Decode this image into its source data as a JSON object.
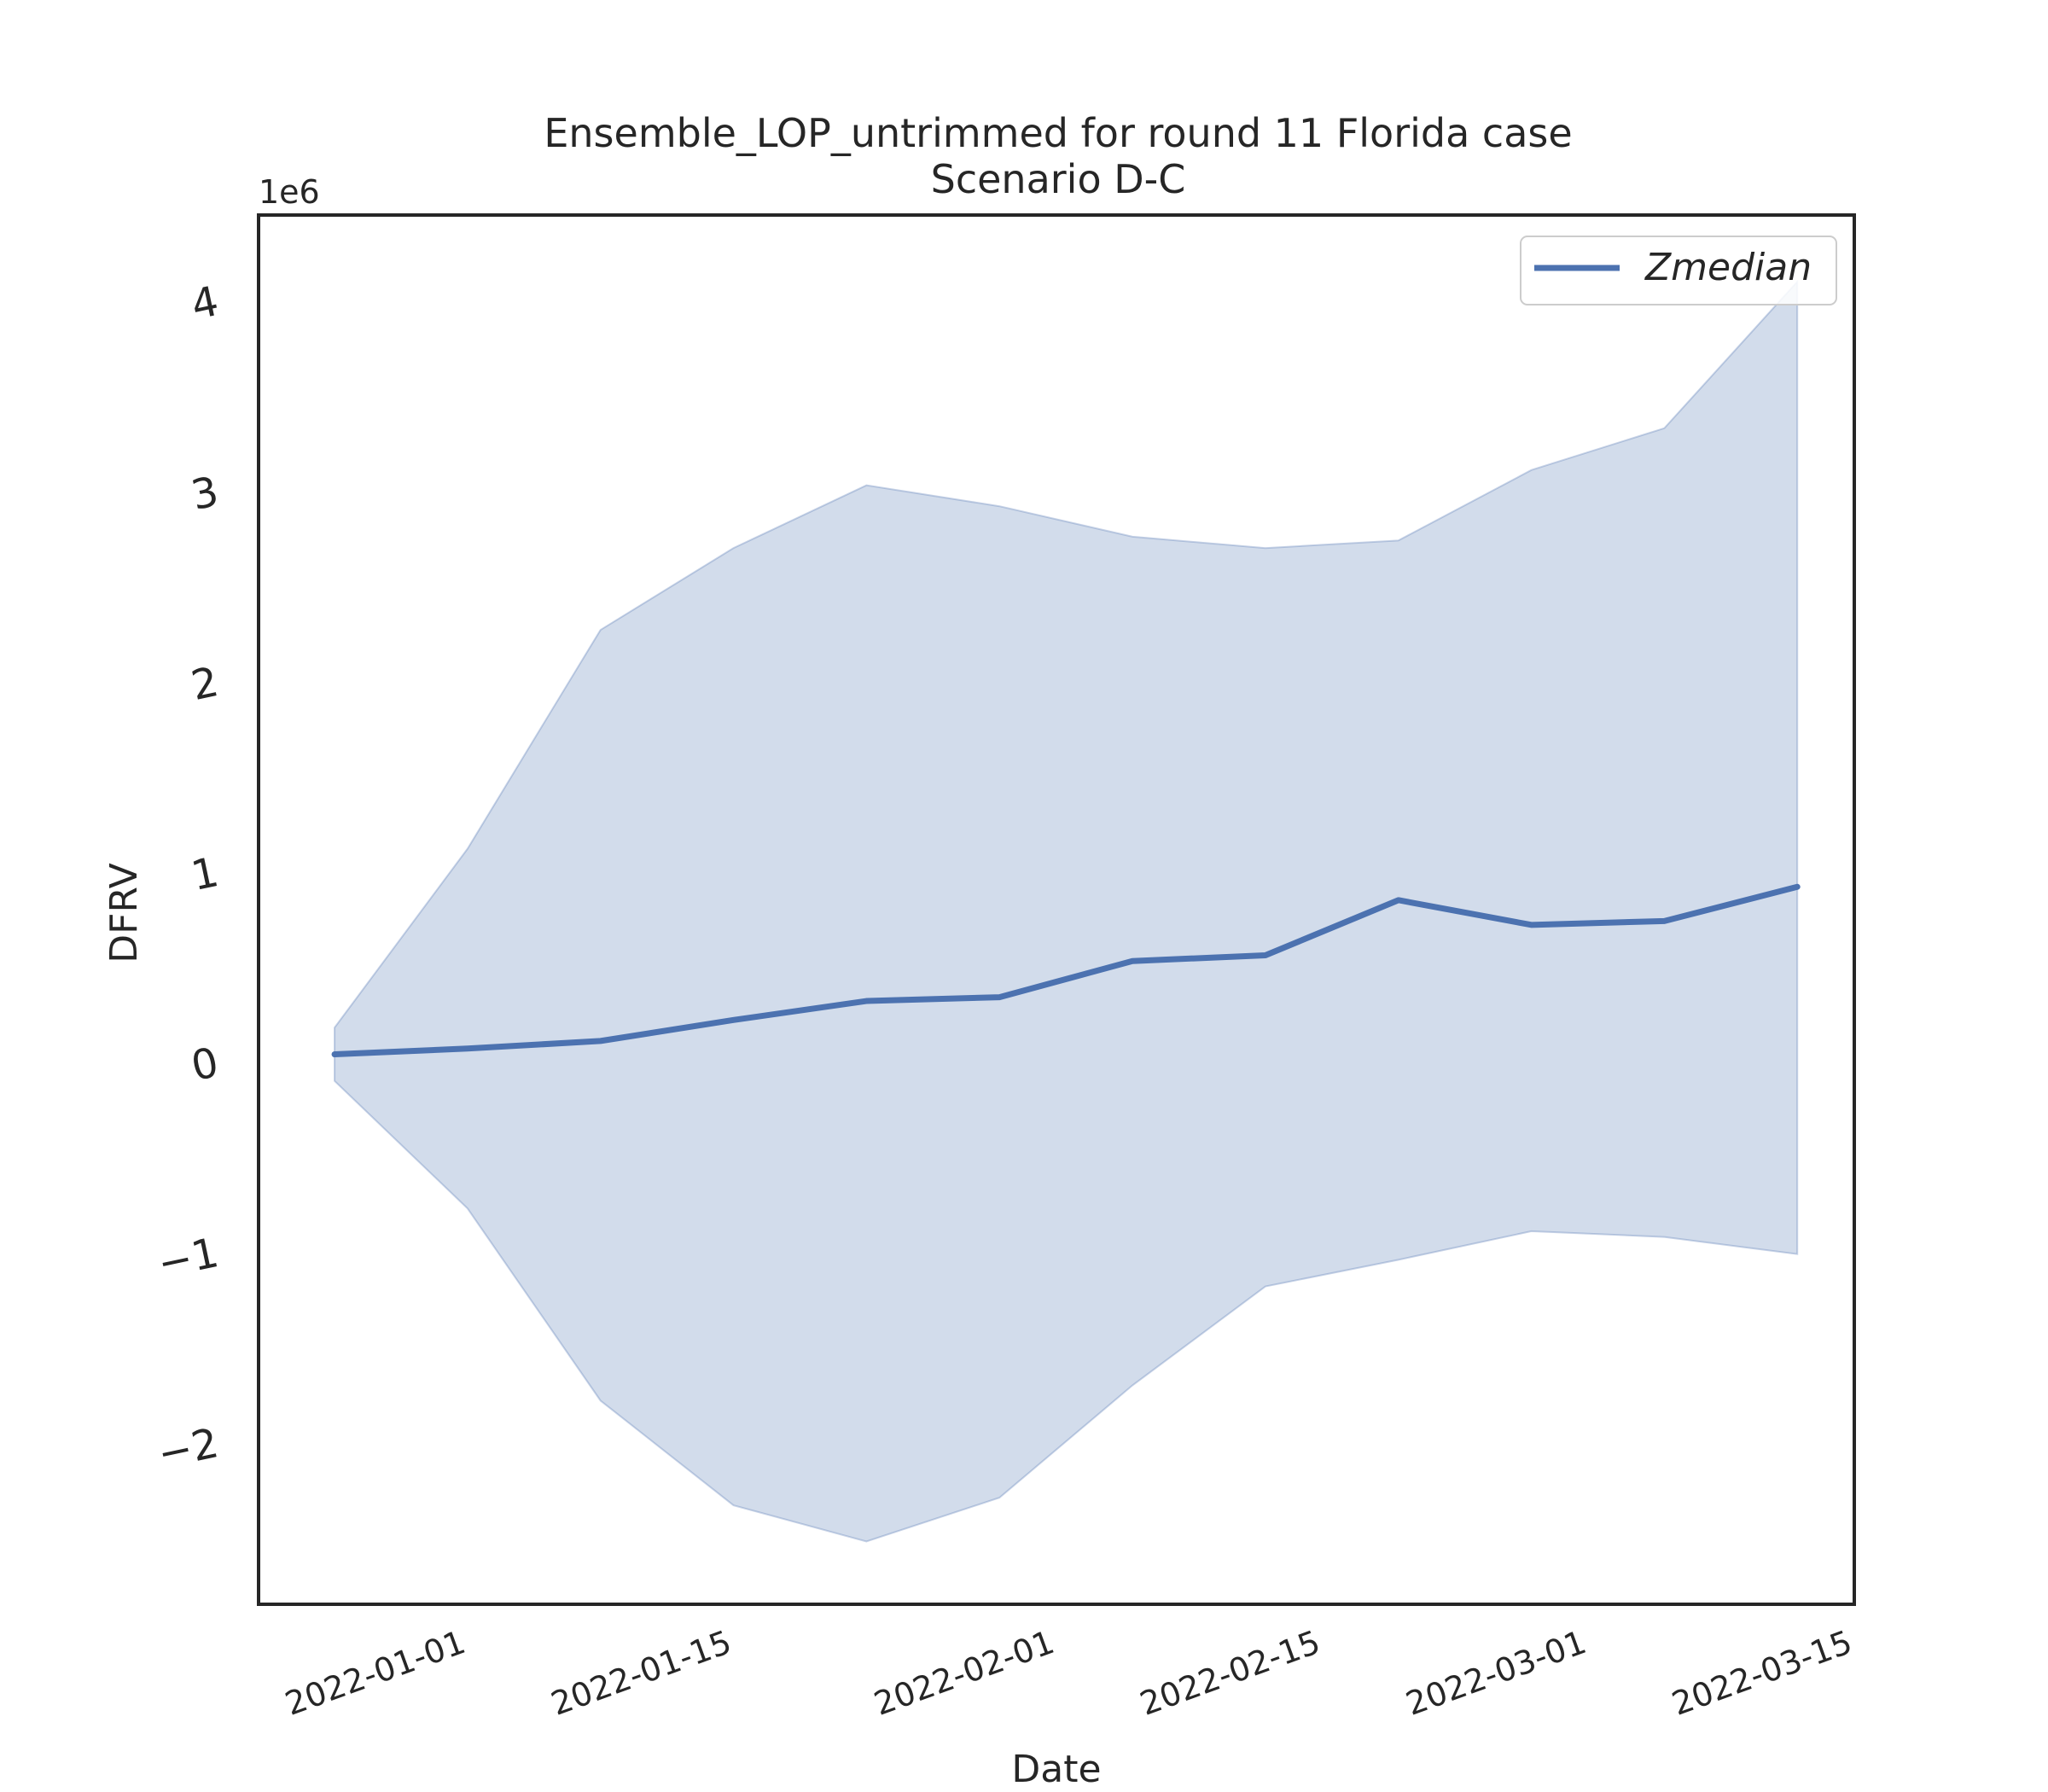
{
  "chart_data": {
    "type": "line",
    "title": "Ensemble_LOP_untrimmed for round 11 Florida case",
    "subtitle": "Scenario D-C",
    "xlabel": "Date",
    "ylabel": "DFRV",
    "y_offset_label": "1e6",
    "y_scale_factor": 1000000,
    "ylim": [
      -2.85,
      4.45
    ],
    "xlim": [
      "2021-12-21",
      "2022-03-15"
    ],
    "x_ticks": [
      "2022-01-01",
      "2022-01-15",
      "2022-02-01",
      "2022-02-15",
      "2022-03-01",
      "2022-03-15"
    ],
    "y_ticks": [
      -2,
      -1,
      0,
      1,
      2,
      3,
      4
    ],
    "grid": false,
    "legend_position": "top-right",
    "x": [
      "2021-12-25",
      "2022-01-01",
      "2022-01-08",
      "2022-01-15",
      "2022-01-22",
      "2022-01-29",
      "2022-02-05",
      "2022-02-12",
      "2022-02-19",
      "2022-02-26",
      "2022-03-05",
      "2022-03-12"
    ],
    "series": [
      {
        "name": "Zmedian",
        "color": "#4c72b0",
        "values": [
          40000,
          70000,
          110000,
          220000,
          320000,
          340000,
          530000,
          560000,
          850000,
          720000,
          740000,
          920000
        ]
      }
    ],
    "band": {
      "color": "#4c72b0",
      "lower": [
        -100000,
        -770000,
        -1780000,
        -2330000,
        -2520000,
        -2290000,
        -1700000,
        -1180000,
        -1040000,
        -890000,
        -920000,
        -1010000
      ],
      "upper": [
        180000,
        1120000,
        2270000,
        2700000,
        3030000,
        2920000,
        2760000,
        2700000,
        2740000,
        3110000,
        3330000,
        4100000
      ]
    }
  }
}
